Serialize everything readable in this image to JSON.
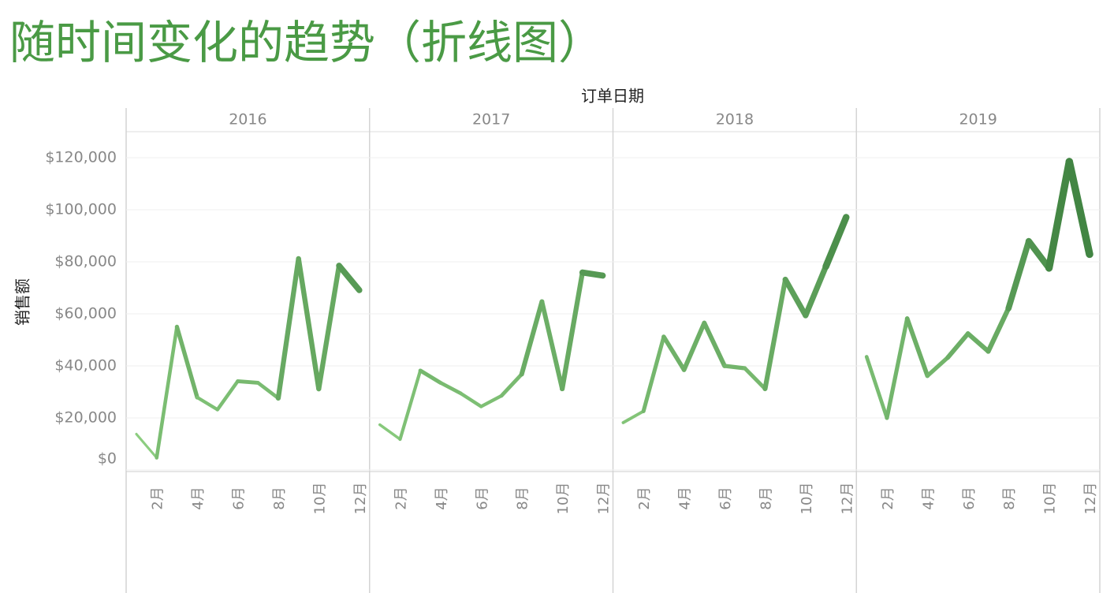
{
  "chart_data": {
    "type": "line",
    "title": "随时间变化的趋势（折线图）",
    "x_label": "订单日期",
    "y_label": "销售额",
    "categories": [
      null,
      "2月",
      null,
      "4月",
      null,
      "6月",
      null,
      "8月",
      null,
      "10月",
      null,
      "12月"
    ],
    "color_range": [
      "#93d486",
      "#2a6e2f"
    ],
    "grid": true,
    "ylim": [
      0,
      130000
    ],
    "yticks": [
      {
        "value": 0,
        "label": "$0"
      },
      {
        "value": 20000,
        "label": "$20,000"
      },
      {
        "value": 40000,
        "label": "$40,000"
      },
      {
        "value": 60000,
        "label": "$60,000"
      },
      {
        "value": 80000,
        "label": "$80,000"
      },
      {
        "value": 100000,
        "label": "$100,000"
      },
      {
        "value": 120000,
        "label": "$120,000"
      }
    ],
    "series": [
      {
        "name": "2016",
        "values": [
          13800,
          4700,
          55000,
          27900,
          23200,
          34100,
          33500,
          27600,
          81200,
          31200,
          78500,
          69100
        ]
      },
      {
        "name": "2017",
        "values": [
          17400,
          11800,
          38200,
          33500,
          29400,
          24400,
          28500,
          36800,
          64700,
          31200,
          75900,
          74700
        ]
      },
      {
        "name": "2018",
        "values": [
          18200,
          22600,
          51200,
          38500,
          56500,
          40000,
          39100,
          31200,
          73200,
          59400,
          78200,
          97100
        ]
      },
      {
        "name": "2019",
        "values": [
          43500,
          20000,
          58200,
          36200,
          43200,
          52400,
          45600,
          62100,
          87900,
          77600,
          118500,
          82900
        ]
      }
    ]
  }
}
